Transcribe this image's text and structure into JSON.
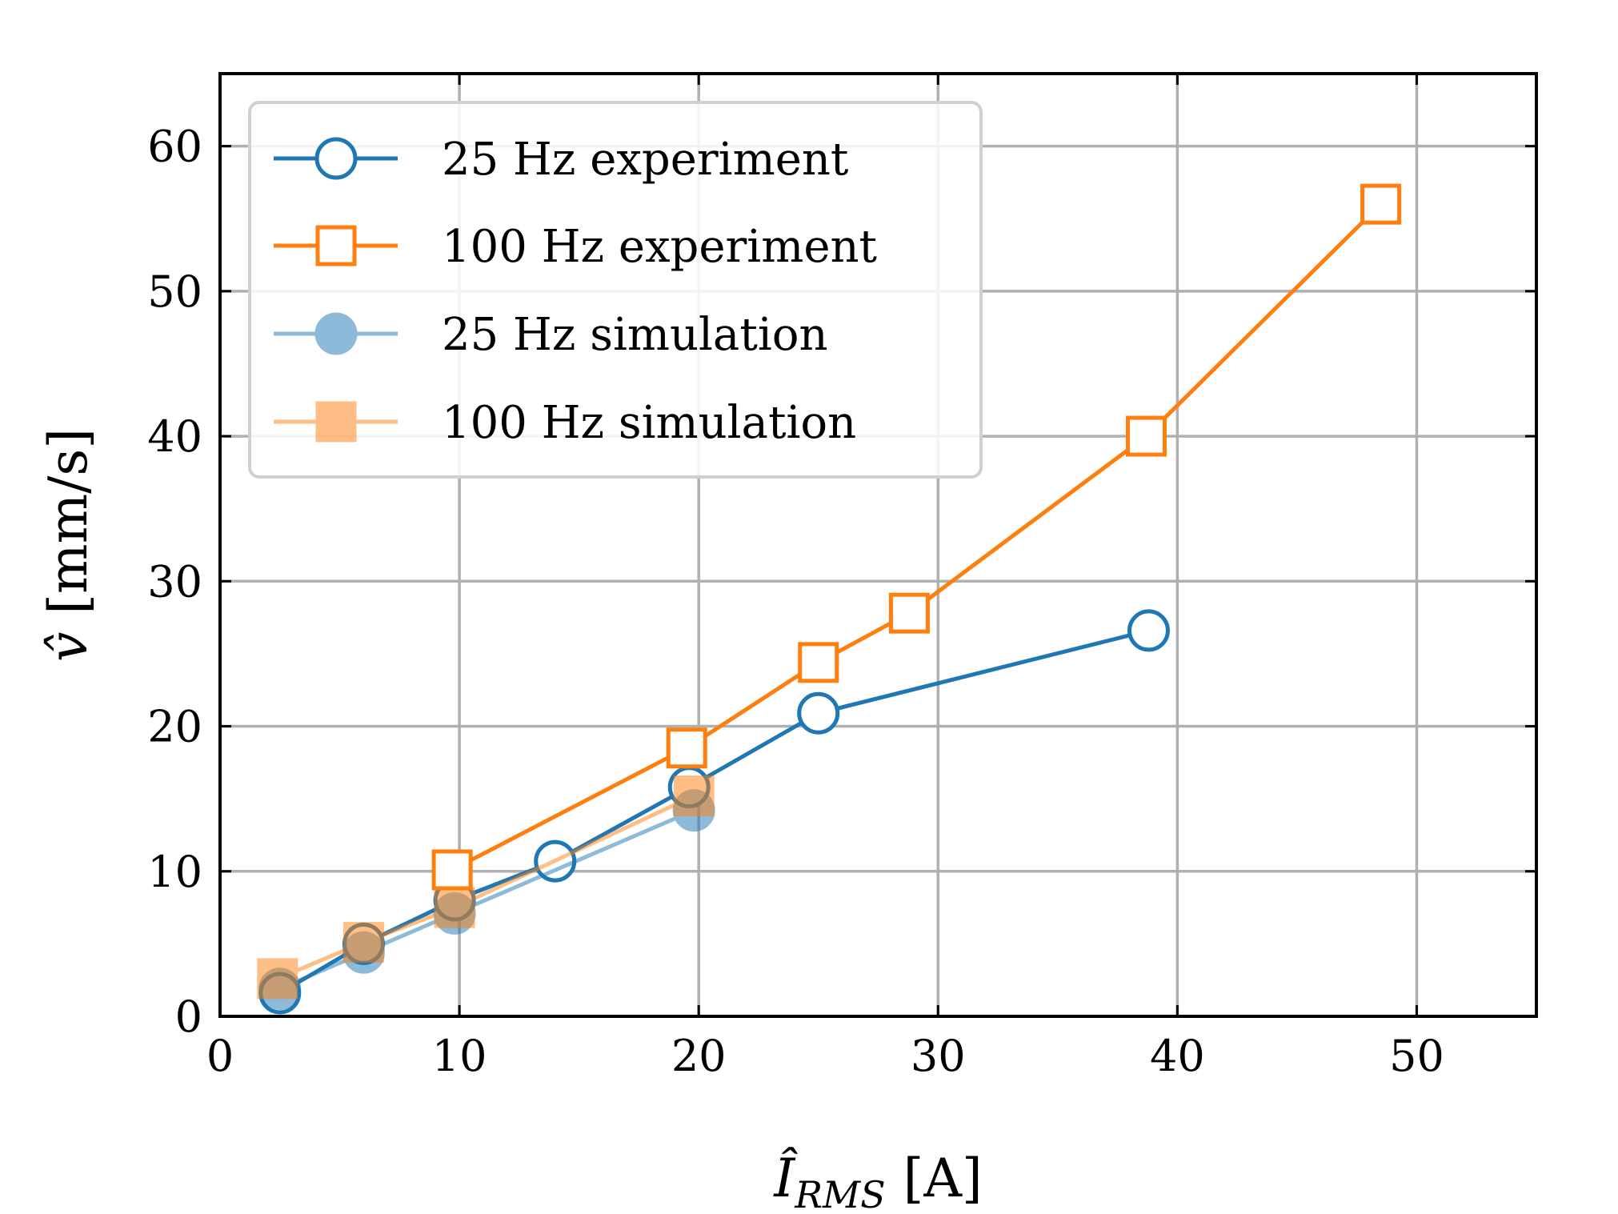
{
  "chart_data": {
    "type": "line",
    "title": "",
    "xlabel": {
      "main": "Î",
      "sub": "RMS",
      "unit": "[A]"
    },
    "ylabel": {
      "main": "v̂",
      "unit": "[mm/s]"
    },
    "xlim": [
      0,
      55
    ],
    "ylim": [
      0,
      65
    ],
    "xticks": [
      0,
      10,
      20,
      30,
      40,
      50
    ],
    "yticks": [
      0,
      10,
      20,
      30,
      40,
      50,
      60
    ],
    "grid": true,
    "legend_position": "top-left",
    "series": [
      {
        "name": "25 Hz experiment",
        "color": "#1f77b4",
        "marker": "circle",
        "filled": false,
        "alpha": 1.0,
        "points": [
          [
            2.5,
            1.6
          ],
          [
            6.0,
            5.0
          ],
          [
            9.8,
            8.0
          ],
          [
            14.0,
            10.7
          ],
          [
            19.6,
            15.8
          ],
          [
            25.0,
            20.9
          ],
          [
            38.8,
            26.6
          ]
        ]
      },
      {
        "name": "100 Hz experiment",
        "color": "#ff7f0e",
        "marker": "square",
        "filled": false,
        "alpha": 1.0,
        "points": [
          [
            9.7,
            10.1
          ],
          [
            19.5,
            18.5
          ],
          [
            25.0,
            24.4
          ],
          [
            28.8,
            27.8
          ],
          [
            38.7,
            40.0
          ],
          [
            48.5,
            56.0
          ]
        ]
      },
      {
        "name": "25 Hz simulation",
        "color": "#1f77b4",
        "marker": "circle",
        "filled": true,
        "alpha": 0.5,
        "points": [
          [
            2.5,
            1.9
          ],
          [
            6.0,
            4.4
          ],
          [
            9.8,
            7.1
          ],
          [
            19.8,
            14.2
          ]
        ]
      },
      {
        "name": "100 Hz simulation",
        "color": "#ff7f0e",
        "marker": "square",
        "filled": true,
        "alpha": 0.5,
        "points": [
          [
            2.4,
            2.6
          ],
          [
            6.0,
            5.1
          ],
          [
            9.8,
            7.5
          ],
          [
            19.8,
            15.2
          ]
        ]
      }
    ]
  }
}
